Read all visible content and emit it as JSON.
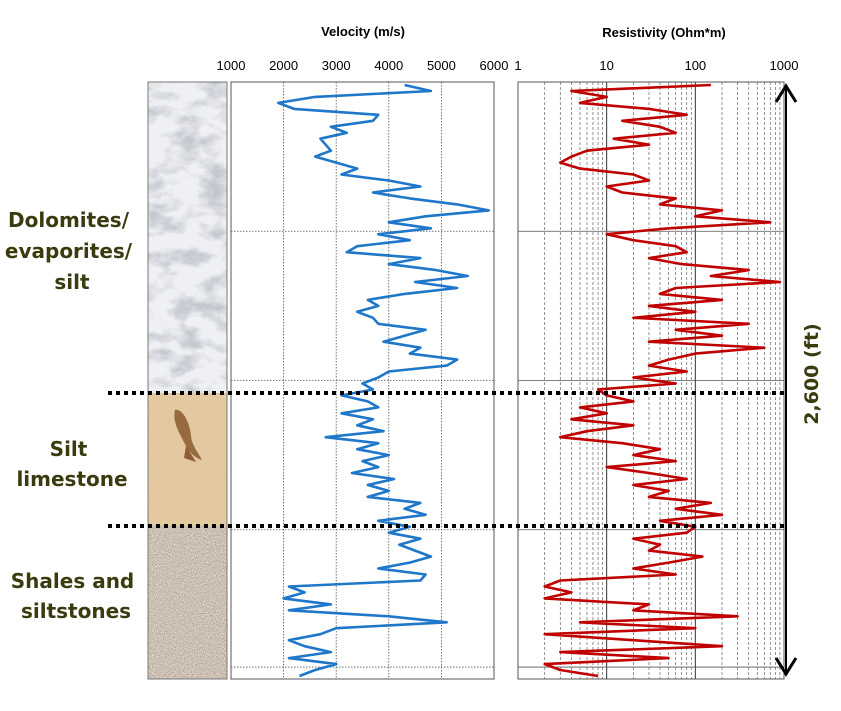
{
  "chart_data": [
    {
      "type": "line",
      "title": "Velocity (m/s)",
      "x_scale": "linear",
      "xlim": [
        1000,
        6000
      ],
      "x_ticks": [
        "1000",
        "2000",
        "3000",
        "4000",
        "5000",
        "6000"
      ],
      "grid": true,
      "color": "#1f77c9",
      "depth_samples": 100,
      "series": [
        {
          "values": [
            4300,
            4800,
            2600,
            1900,
            2200,
            3800,
            3700,
            2900,
            3200,
            2700,
            2800,
            2900,
            2600,
            3000,
            3400,
            3100,
            4000,
            4600,
            3700,
            4400,
            5300,
            5900,
            4700,
            4000,
            4800,
            3800,
            4400,
            3400,
            3200,
            4600,
            4000,
            4900,
            5500,
            4500,
            5300,
            4300,
            3600,
            3800,
            3400,
            3700,
            3800,
            4700,
            4300,
            3900,
            4600,
            4400,
            5300,
            5100,
            4000,
            3800,
            3500,
            3700,
            3100,
            3600,
            3800,
            3100,
            3700,
            3400,
            3900,
            2800,
            3800,
            3400,
            4000,
            3500,
            3800,
            3300,
            4100,
            3600,
            4000,
            3600,
            4600,
            4300,
            4700,
            3800,
            4400,
            4000,
            4600,
            4200,
            4500,
            4800,
            4400,
            3800,
            4700,
            4600,
            2100,
            2400,
            2000,
            2900,
            2100,
            4000,
            5100,
            3000,
            2700,
            2100,
            2400,
            2900,
            2100,
            3000,
            2600,
            2300
          ]
        }
      ]
    },
    {
      "type": "line",
      "title": "Resistivity (Ohm*m)",
      "x_scale": "log",
      "xlim": [
        1,
        1000
      ],
      "x_ticks": [
        "1",
        "10",
        "100",
        "1000"
      ],
      "grid": true,
      "color": "#c00000",
      "depth_samples": 100,
      "series": [
        {
          "values": [
            150,
            4,
            10,
            5,
            30,
            80,
            15,
            40,
            60,
            12,
            30,
            6,
            4,
            3,
            5,
            20,
            30,
            10,
            15,
            60,
            40,
            200,
            100,
            700,
            50,
            10,
            20,
            60,
            80,
            30,
            70,
            400,
            150,
            900,
            60,
            40,
            200,
            30,
            100,
            20,
            400,
            60,
            200,
            30,
            600,
            100,
            50,
            30,
            80,
            20,
            60,
            8,
            10,
            20,
            5,
            10,
            4,
            20,
            6,
            3,
            15,
            40,
            20,
            60,
            10,
            30,
            80,
            20,
            50,
            30,
            150,
            60,
            200,
            40,
            100,
            80,
            20,
            40,
            30,
            120,
            50,
            20,
            60,
            3,
            2,
            4,
            2,
            30,
            20,
            300,
            5,
            100,
            2,
            20,
            200,
            3,
            50,
            2,
            3,
            8
          ]
        }
      ]
    }
  ],
  "lithology": [
    {
      "label": "Dolomites/\nevaporites/\nsilt",
      "texture": "marble",
      "from": 0,
      "to": 0.5
    },
    {
      "label": "Silt\nlimestone",
      "texture": "sandstone",
      "from": 0.5,
      "to": 0.75
    },
    {
      "label": "Shales and\nsiltstones",
      "texture": "gravel",
      "from": 0.75,
      "to": 1
    }
  ],
  "depth_scale": {
    "label": "2,600 (ft)"
  },
  "colors": {
    "label_text": "#3b3b10",
    "boundary": "#000000"
  }
}
